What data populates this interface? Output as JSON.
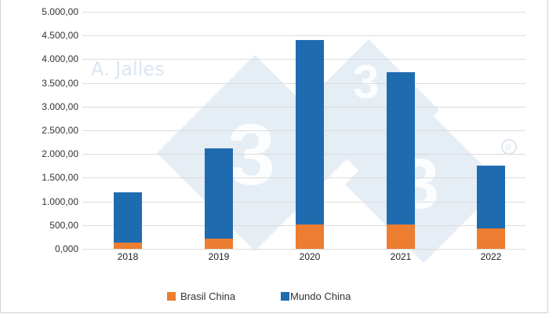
{
  "chart_data": {
    "type": "bar",
    "stacked": true,
    "title": "",
    "xlabel": "",
    "ylabel": "",
    "categories": [
      "2018",
      "2019",
      "2020",
      "2021",
      "2022"
    ],
    "series": [
      {
        "name": "Brasil China",
        "color": "#ED7D31",
        "values": [
          130,
          215,
          510,
          510,
          430
        ]
      },
      {
        "name": "Mundo China",
        "color": "#1F6BB0",
        "values": [
          1060,
          1905,
          3890,
          3210,
          1330
        ]
      }
    ],
    "ylim": [
      0,
      5000
    ],
    "yticks": [
      0,
      500,
      1000,
      1500,
      2000,
      2500,
      3000,
      3500,
      4000,
      4500,
      5000
    ],
    "ytick_labels": [
      "0,000",
      "500,00",
      "1.000,00",
      "1.500,00",
      "2.000,00",
      "2.500,00",
      "3.000,00",
      "3.500,00",
      "4.000,00",
      "4.500,00",
      "5.000,00"
    ],
    "grid": true,
    "legend_position": "bottom"
  },
  "watermark": {
    "text": "A. Jalles",
    "registered": "®"
  },
  "legend": [
    {
      "label": "Brasil China",
      "color": "#ED7D31"
    },
    {
      "label": "Mundo China",
      "color": "#1F6BB0"
    }
  ]
}
